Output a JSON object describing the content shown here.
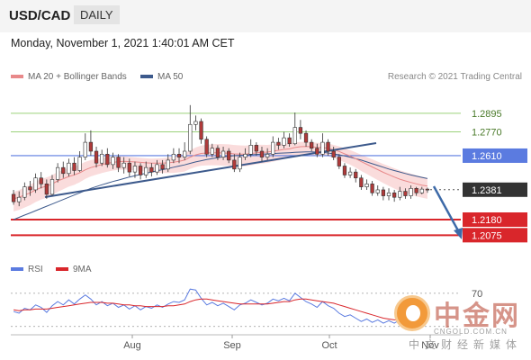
{
  "header": {
    "pair": "USD/CAD",
    "timeframe": "DAILY"
  },
  "timestamp": "Monday, November 1, 2021 1:40:01 AM CET",
  "legend": {
    "ma20_label": "MA 20 + Bollinger Bands",
    "ma50_label": "MA 50",
    "credit": "Research © 2021 Trading Central"
  },
  "rsi_legend": {
    "rsi_label": "RSI",
    "ma9_label": "9MA"
  },
  "watermark": {
    "big": "中金网",
    "small": "CNGOLD.COM.CN",
    "sub": "中文财经新媒体"
  },
  "colors": {
    "ma20": "#e8898a",
    "ma50": "#3d5a8c",
    "band": "#f9d6d6",
    "green": "#9bd27a",
    "blue": "#5b7be0",
    "red": "#d9262b",
    "current": "#333333",
    "trend": "#3d5a8c",
    "rsi": "#5b7be0",
    "rsi_ma": "#d9262b",
    "bull": "#ffffff",
    "bear": "#b03a3a"
  },
  "chart_data": {
    "type": "candlestick",
    "price_range": [
      1.195,
      1.31
    ],
    "levels": [
      {
        "name": "resistance",
        "value": 1.2895,
        "label": "1.2895",
        "style": "green"
      },
      {
        "name": "resistance",
        "value": 1.277,
        "label": "1.2770",
        "style": "green"
      },
      {
        "name": "pivot",
        "value": 1.261,
        "label": "1.2610",
        "style": "blue"
      },
      {
        "name": "current",
        "value": 1.2381,
        "label": "1.2381",
        "style": "current"
      },
      {
        "name": "support",
        "value": 1.218,
        "label": "1.2180",
        "style": "red"
      },
      {
        "name": "support",
        "value": 1.2075,
        "label": "1.2075",
        "style": "red"
      }
    ],
    "x_ticks": [
      "Aug",
      "Sep",
      "Oct",
      "Nov"
    ],
    "rsi_levels": [
      70,
      30
    ],
    "rsi_tick_labels": [
      "70"
    ],
    "candles": [
      [
        1.235,
        1.23,
        1.238,
        1.228
      ],
      [
        1.23,
        1.233,
        1.237,
        1.227
      ],
      [
        1.233,
        1.24,
        1.243,
        1.231
      ],
      [
        1.24,
        1.238,
        1.244,
        1.234
      ],
      [
        1.238,
        1.246,
        1.249,
        1.236
      ],
      [
        1.246,
        1.242,
        1.25,
        1.239
      ],
      [
        1.242,
        1.235,
        1.245,
        1.232
      ],
      [
        1.235,
        1.245,
        1.248,
        1.234
      ],
      [
        1.245,
        1.253,
        1.256,
        1.243
      ],
      [
        1.253,
        1.249,
        1.257,
        1.246
      ],
      [
        1.249,
        1.256,
        1.259,
        1.247
      ],
      [
        1.256,
        1.251,
        1.26,
        1.248
      ],
      [
        1.251,
        1.26,
        1.264,
        1.25
      ],
      [
        1.26,
        1.27,
        1.276,
        1.258
      ],
      [
        1.27,
        1.264,
        1.278,
        1.261
      ],
      [
        1.264,
        1.256,
        1.267,
        1.253
      ],
      [
        1.256,
        1.262,
        1.265,
        1.254
      ],
      [
        1.262,
        1.255,
        1.266,
        1.253
      ],
      [
        1.255,
        1.26,
        1.263,
        1.252
      ],
      [
        1.26,
        1.253,
        1.262,
        1.25
      ],
      [
        1.253,
        1.256,
        1.26,
        1.249
      ],
      [
        1.256,
        1.25,
        1.259,
        1.247
      ],
      [
        1.25,
        1.254,
        1.257,
        1.246
      ],
      [
        1.254,
        1.248,
        1.256,
        1.245
      ],
      [
        1.248,
        1.253,
        1.257,
        1.246
      ],
      [
        1.253,
        1.25,
        1.256,
        1.247
      ],
      [
        1.25,
        1.255,
        1.258,
        1.248
      ],
      [
        1.255,
        1.252,
        1.258,
        1.249
      ],
      [
        1.252,
        1.258,
        1.262,
        1.25
      ],
      [
        1.258,
        1.262,
        1.266,
        1.256
      ],
      [
        1.262,
        1.26,
        1.266,
        1.256
      ],
      [
        1.26,
        1.264,
        1.27,
        1.258
      ],
      [
        1.264,
        1.282,
        1.295,
        1.262
      ],
      [
        1.282,
        1.284,
        1.288,
        1.278
      ],
      [
        1.284,
        1.272,
        1.286,
        1.269
      ],
      [
        1.272,
        1.262,
        1.274,
        1.26
      ],
      [
        1.262,
        1.266,
        1.269,
        1.26
      ],
      [
        1.266,
        1.26,
        1.268,
        1.258
      ],
      [
        1.26,
        1.264,
        1.267,
        1.258
      ],
      [
        1.264,
        1.258,
        1.266,
        1.256
      ],
      [
        1.258,
        1.252,
        1.262,
        1.25
      ],
      [
        1.252,
        1.26,
        1.263,
        1.25
      ],
      [
        1.26,
        1.262,
        1.266,
        1.258
      ],
      [
        1.262,
        1.268,
        1.272,
        1.26
      ],
      [
        1.268,
        1.264,
        1.27,
        1.261
      ],
      [
        1.264,
        1.26,
        1.267,
        1.257
      ],
      [
        1.26,
        1.262,
        1.266,
        1.258
      ],
      [
        1.262,
        1.27,
        1.274,
        1.26
      ],
      [
        1.27,
        1.268,
        1.273,
        1.265
      ],
      [
        1.268,
        1.273,
        1.277,
        1.266
      ],
      [
        1.273,
        1.269,
        1.276,
        1.267
      ],
      [
        1.269,
        1.28,
        1.29,
        1.268
      ],
      [
        1.28,
        1.276,
        1.285,
        1.272
      ],
      [
        1.276,
        1.27,
        1.278,
        1.267
      ],
      [
        1.27,
        1.266,
        1.272,
        1.264
      ],
      [
        1.266,
        1.262,
        1.269,
        1.26
      ],
      [
        1.262,
        1.27,
        1.276,
        1.26
      ],
      [
        1.27,
        1.264,
        1.272,
        1.261
      ],
      [
        1.264,
        1.26,
        1.267,
        1.258
      ],
      [
        1.26,
        1.254,
        1.262,
        1.252
      ],
      [
        1.254,
        1.248,
        1.256,
        1.246
      ],
      [
        1.248,
        1.25,
        1.253,
        1.246
      ],
      [
        1.25,
        1.246,
        1.252,
        1.243
      ],
      [
        1.246,
        1.24,
        1.248,
        1.238
      ],
      [
        1.24,
        1.242,
        1.245,
        1.238
      ],
      [
        1.242,
        1.236,
        1.244,
        1.234
      ],
      [
        1.236,
        1.238,
        1.241,
        1.234
      ],
      [
        1.238,
        1.234,
        1.24,
        1.231
      ],
      [
        1.234,
        1.236,
        1.239,
        1.231
      ],
      [
        1.236,
        1.233,
        1.238,
        1.23
      ],
      [
        1.233,
        1.237,
        1.24,
        1.231
      ],
      [
        1.237,
        1.234,
        1.239,
        1.232
      ],
      [
        1.234,
        1.239,
        1.241,
        1.232
      ],
      [
        1.239,
        1.236,
        1.24,
        1.234
      ],
      [
        1.236,
        1.2385,
        1.24,
        1.235
      ],
      [
        1.2385,
        1.2381,
        1.2395,
        1.236
      ]
    ],
    "ma20": [
      1.232,
      1.233,
      1.2345,
      1.236,
      1.238,
      1.2395,
      1.2405,
      1.242,
      1.244,
      1.2455,
      1.247,
      1.248,
      1.2495,
      1.2515,
      1.253,
      1.254,
      1.255,
      1.2558,
      1.2565,
      1.257,
      1.2572,
      1.257,
      1.2568,
      1.2565,
      1.2562,
      1.256,
      1.256,
      1.256,
      1.2562,
      1.2566,
      1.2572,
      1.258,
      1.26,
      1.2615,
      1.2625,
      1.2628,
      1.263,
      1.263,
      1.2628,
      1.2626,
      1.2622,
      1.262,
      1.262,
      1.2624,
      1.263,
      1.2632,
      1.2634,
      1.264,
      1.2646,
      1.2652,
      1.2656,
      1.2665,
      1.267,
      1.2672,
      1.267,
      1.2666,
      1.2664,
      1.266,
      1.265,
      1.2638,
      1.2622,
      1.2608,
      1.259,
      1.257,
      1.2552,
      1.2534,
      1.2516,
      1.2498,
      1.2482,
      1.2466,
      1.2452,
      1.244,
      1.243,
      1.242,
      1.2412,
      1.2405
    ],
    "ma50": [
      1.218,
      1.2195,
      1.221,
      1.2225,
      1.224,
      1.2255,
      1.227,
      1.2285,
      1.23,
      1.2315,
      1.233,
      1.2345,
      1.236,
      1.2375,
      1.239,
      1.2402,
      1.2414,
      1.2425,
      1.2436,
      1.2446,
      1.2456,
      1.2466,
      1.2475,
      1.2484,
      1.2492,
      1.25,
      1.2508,
      1.2516,
      1.2524,
      1.2532,
      1.254,
      1.2548,
      1.2558,
      1.2568,
      1.2576,
      1.2584,
      1.259,
      1.2596,
      1.2602,
      1.2606,
      1.261,
      1.2612,
      1.2614,
      1.2616,
      1.2618,
      1.262,
      1.2622,
      1.2624,
      1.2626,
      1.2628,
      1.263,
      1.2632,
      1.2634,
      1.2636,
      1.2636,
      1.2634,
      1.2632,
      1.2628,
      1.2622,
      1.2616,
      1.2608,
      1.26,
      1.259,
      1.258,
      1.2568,
      1.2556,
      1.2544,
      1.2532,
      1.252,
      1.251,
      1.25,
      1.249,
      1.248,
      1.2472,
      1.2464,
      1.2456
    ],
    "rsi": [
      48,
      46,
      52,
      50,
      56,
      53,
      47,
      55,
      60,
      56,
      62,
      57,
      63,
      68,
      63,
      56,
      60,
      55,
      58,
      53,
      56,
      51,
      55,
      50,
      54,
      52,
      56,
      53,
      57,
      60,
      59,
      62,
      75,
      74,
      64,
      56,
      59,
      55,
      58,
      54,
      50,
      56,
      58,
      62,
      59,
      56,
      58,
      63,
      61,
      64,
      61,
      70,
      65,
      60,
      57,
      53,
      60,
      55,
      52,
      46,
      42,
      44,
      40,
      36,
      39,
      35,
      38,
      34,
      37,
      34,
      38,
      35,
      40,
      37,
      39,
      38
    ],
    "rsi_ma": [
      50,
      49,
      50,
      50,
      51,
      51,
      51,
      52,
      53,
      54,
      55,
      56,
      57,
      58,
      59,
      59,
      59,
      58,
      58,
      57,
      56,
      56,
      55,
      55,
      54,
      54,
      54,
      54,
      55,
      55,
      56,
      57,
      60,
      62,
      63,
      63,
      62,
      61,
      60,
      59,
      58,
      57,
      57,
      57,
      57,
      57,
      57,
      58,
      59,
      60,
      60,
      62,
      63,
      63,
      62,
      61,
      60,
      59,
      58,
      56,
      54,
      52,
      50,
      48,
      46,
      44,
      42,
      40,
      39,
      38,
      38,
      37,
      37,
      37,
      37,
      37
    ]
  }
}
